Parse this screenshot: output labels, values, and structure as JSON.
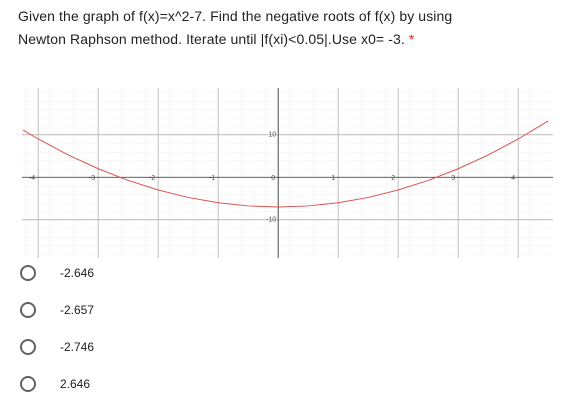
{
  "question": {
    "lines": [
      "Given the graph of f(x)=x^2-7. Find the negative roots of f(x) by using",
      "Newton Raphson method. Iterate until |f(xi)<0.05|.Use x0= -3."
    ],
    "required": "*"
  },
  "chart_data": {
    "type": "line",
    "x": [
      -4.25,
      -4,
      -3.5,
      -3,
      -2.5,
      -2,
      -1.5,
      -1,
      -0.5,
      0,
      0.5,
      1,
      1.5,
      2,
      2.5,
      3,
      3.5,
      4,
      4.5
    ],
    "series": [
      {
        "color": "#d9534f",
        "values": [
          11.0625,
          9,
          5.25,
          2,
          -0.75,
          -3,
          -4.75,
          -6,
          -6.75,
          -7,
          -6.75,
          -6,
          -4.75,
          -3,
          -0.75,
          2,
          5.25,
          9,
          13.25
        ]
      }
    ],
    "xlim": [
      -4.27,
      4.58
    ],
    "ylim": [
      -19,
      21
    ],
    "xticks": [
      -4,
      -3,
      -2,
      -1,
      0,
      1,
      2,
      3,
      4
    ],
    "yticks": [
      -10,
      10
    ],
    "grid": true
  },
  "options": [
    "-2.646",
    "-2.657",
    "-2.746",
    "2.646"
  ]
}
